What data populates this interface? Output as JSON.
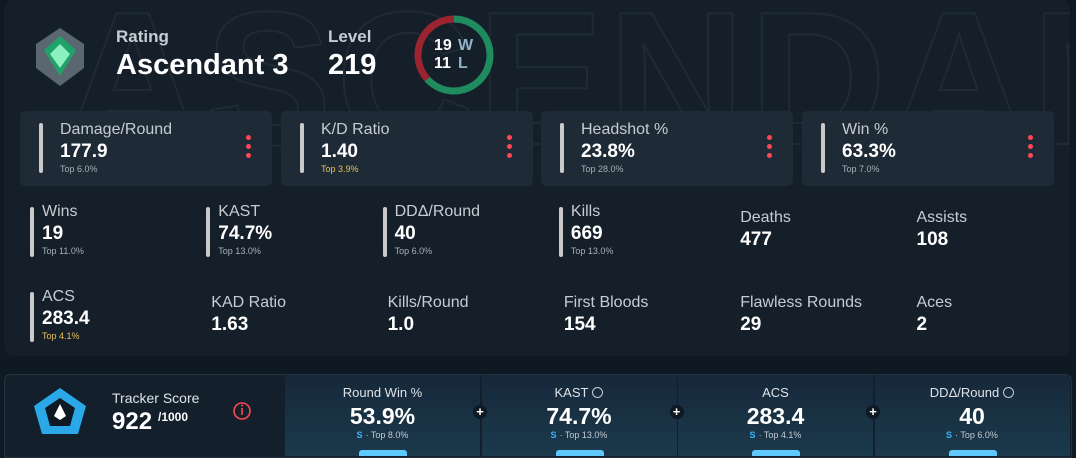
{
  "header": {
    "watermark": "ASCENDANT",
    "rating_label": "Rating",
    "rating": "Ascendant 3",
    "level_label": "Level",
    "level": "219",
    "record": {
      "wins": 19,
      "wins_label": "W",
      "losses": 11,
      "losses_label": "L"
    }
  },
  "main_stats": [
    {
      "name": "Damage/Round",
      "value": "177.9",
      "top": "Top 6.0%"
    },
    {
      "name": "K/D Ratio",
      "value": "1.40",
      "top": "Top 3.9%",
      "top_color": "#e8c15a"
    },
    {
      "name": "Headshot %",
      "value": "23.8%",
      "top": "Top 28.0%"
    },
    {
      "name": "Win %",
      "value": "63.3%",
      "top": "Top 7.0%"
    }
  ],
  "stats": [
    {
      "name": "Wins",
      "value": "19",
      "top": "Top 11.0%"
    },
    {
      "name": "KAST",
      "value": "74.7%",
      "top": "Top 13.0%"
    },
    {
      "name": "DDΔ/Round",
      "value": "40",
      "top": "Top 6.0%"
    },
    {
      "name": "Kills",
      "value": "669",
      "top": "Top 13.0%"
    },
    {
      "name": "Deaths",
      "value": "477"
    },
    {
      "name": "Assists",
      "value": "108"
    },
    {
      "name": "ACS",
      "value": "283.4",
      "top": "Top 4.1%",
      "top_color": "#e8c15a"
    },
    {
      "name": "KAD Ratio",
      "value": "1.63"
    },
    {
      "name": "Kills/Round",
      "value": "1.0"
    },
    {
      "name": "First Bloods",
      "value": "154"
    },
    {
      "name": "Flawless Rounds",
      "value": "29"
    },
    {
      "name": "Aces",
      "value": "2"
    }
  ],
  "tracker": {
    "label": "Tracker Score",
    "score": "922",
    "max": "/1000",
    "items": [
      {
        "name": "Round Win %",
        "value": "53.9%",
        "rank": "S",
        "top": "· Top 8.0%"
      },
      {
        "name": "KAST",
        "value": "74.7%",
        "rank": "S",
        "top": "· Top 13.0%",
        "info": true
      },
      {
        "name": "ACS",
        "value": "283.4",
        "rank": "S",
        "top": "· Top 4.1%"
      },
      {
        "name": "DDΔ/Round",
        "value": "40",
        "rank": "S",
        "top": "· Top 6.0%",
        "info": true
      }
    ]
  }
}
